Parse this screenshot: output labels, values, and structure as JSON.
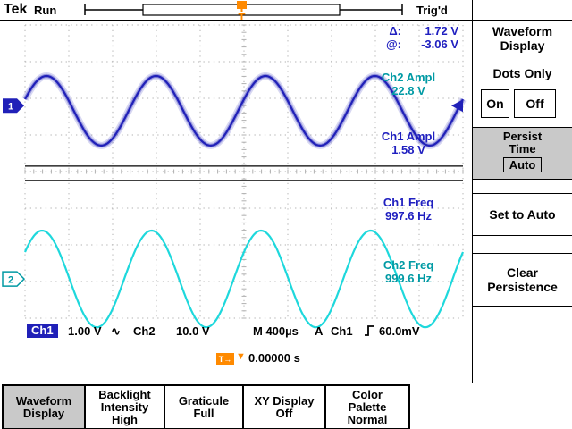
{
  "colors": {
    "ch1": "#2020b8",
    "ch1_text": "#2020c0",
    "ch2": "#1ed8dc",
    "ch2_text": "#009aa4",
    "orange": "#ff8a00",
    "selected_gray": "#c9c9c9",
    "grid": "#b0b0b0"
  },
  "top_bar": {
    "logo": "Tek",
    "acquisition_status": "Run",
    "trigger_status": "Trig'd",
    "trigger_marker": "T"
  },
  "cursors": {
    "delta_label": "Δ:",
    "delta_value": "1.72 V",
    "at_label": "@:",
    "at_value": "-3.06 V"
  },
  "measurements": [
    {
      "channel": "Ch2",
      "label": "Ch2 Ampl",
      "value": "22.8 V"
    },
    {
      "channel": "Ch1",
      "label": "Ch1 Ampl",
      "value": "1.58 V"
    },
    {
      "channel": "Ch1",
      "label": "Ch1 Freq",
      "value": "997.6 Hz"
    },
    {
      "channel": "Ch2",
      "label": "Ch2 Freq",
      "value": "999.6 Hz"
    }
  ],
  "markers": {
    "ch1": "1",
    "ch2": "2"
  },
  "status_bar": {
    "ch1_label": "Ch1",
    "ch1_scale": "1.00 V",
    "ch1_coupling": "∿",
    "ch2_label": "Ch2",
    "ch2_scale": "10.0 V",
    "timebase": "M 400µs",
    "trigger_mode": "A",
    "trigger_source": "Ch1",
    "trigger_level": "60.0mV"
  },
  "trigger_time": {
    "badge": "T→",
    "marker": "▼",
    "value": "0.00000 s"
  },
  "side_menu": {
    "title": "Waveform\nDisplay",
    "dots_only_label": "Dots Only",
    "on_label": "On",
    "off_label": "Off",
    "persist_label": "Persist\nTime",
    "persist_value": "Auto",
    "set_to_auto_label": "Set to Auto",
    "clear_label": "Clear\nPersistence"
  },
  "bottom_menu": [
    {
      "label": "Waveform\nDisplay",
      "selected": true
    },
    {
      "label": "Backlight\nIntensity\nHigh",
      "selected": false
    },
    {
      "label": "Graticule\nFull",
      "selected": false
    },
    {
      "label": "XY Display\nOff",
      "selected": false
    },
    {
      "label": "Color\nPalette\nNormal",
      "selected": false
    }
  ],
  "chart_data": {
    "type": "line",
    "title": "Oscilloscope waveform display",
    "h_divisions": 10,
    "v_divisions": 8,
    "timebase_per_div": "400µs",
    "series": [
      {
        "name": "Ch1",
        "shape": "sine",
        "color": "#2020b8",
        "volts_per_div": "1.00 V",
        "frequency_hz": 997.6,
        "amplitude_v": 1.58,
        "center_div": 2.34,
        "amplitude_div": 0.95,
        "period_div": 2.5,
        "peak_x_div": 0.49,
        "glow": true
      },
      {
        "name": "Ch2",
        "shape": "sine",
        "color": "#1ed8dc",
        "volts_per_div": "10.0 V",
        "frequency_hz": 999.6,
        "amplitude_v": 22.8,
        "center_div": 6.93,
        "amplitude_div": 1.32,
        "period_div": 2.5,
        "peak_x_div": 0.39,
        "glow": false
      }
    ],
    "cursor_lines_div": [
      3.85,
      4.24
    ],
    "ch1_marker_div": 2.2,
    "ch2_marker_div": 6.93,
    "trigger_arrow_div": 2.2
  }
}
